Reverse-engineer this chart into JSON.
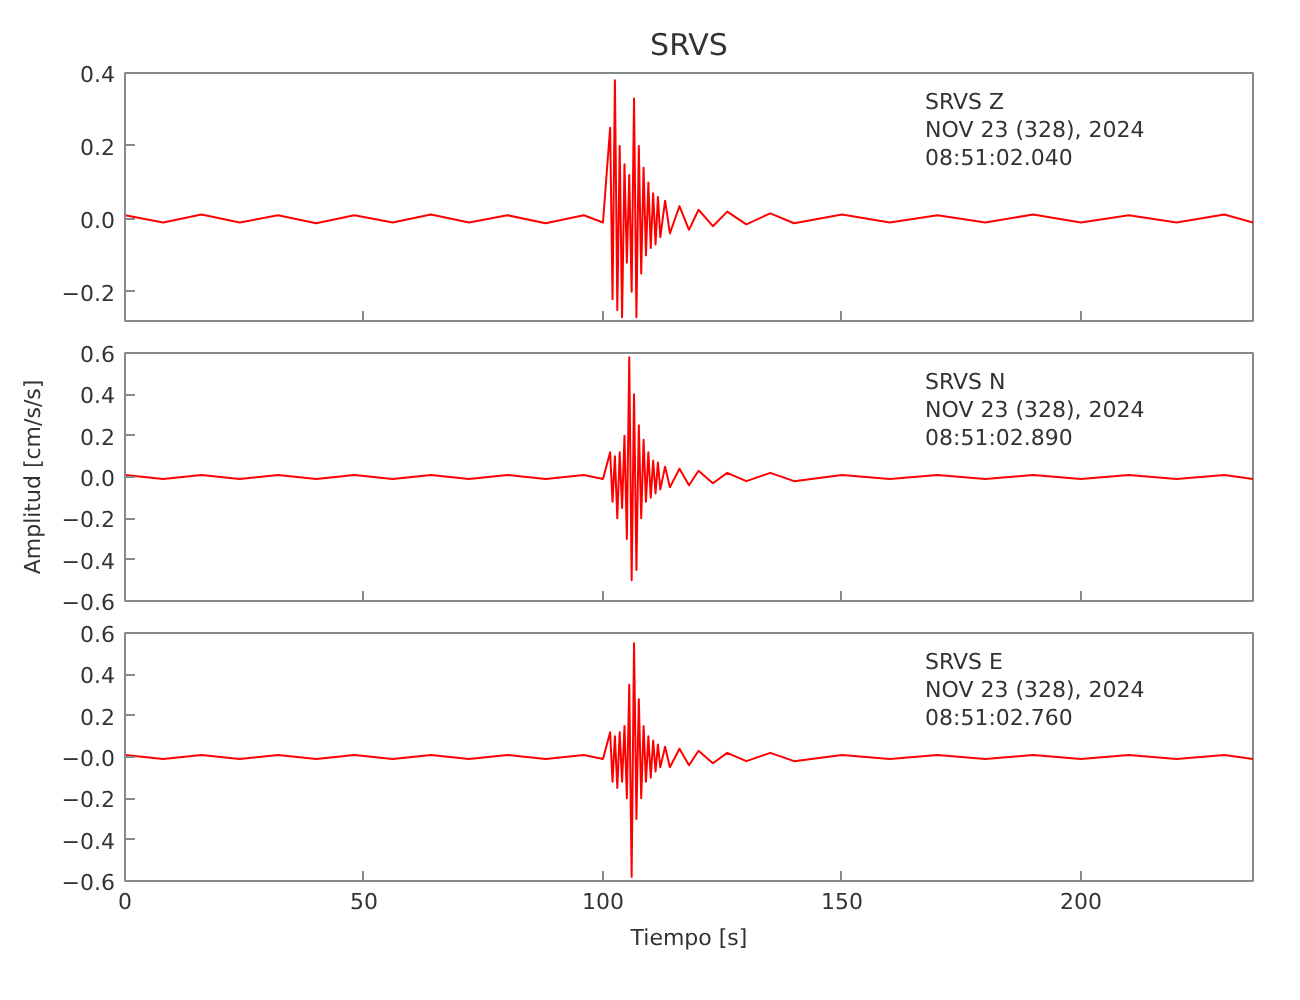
{
  "chart_data": [
    {
      "type": "line",
      "title": "SRVS",
      "annotations": [
        "SRVS   Z",
        "NOV 23 (328), 2024",
        "08:51:02.040"
      ],
      "tick_labels": "y",
      "xlim": [
        0,
        236
      ],
      "xticks": [
        0,
        50,
        100,
        150,
        200
      ],
      "ylim": [
        -0.28,
        0.4
      ],
      "yticks": [
        {
          "value": -0.2,
          "label": "−0.2"
        },
        {
          "value": 0.0,
          "label": "0.0"
        },
        0.2,
        0.4
      ],
      "x": [
        0,
        8,
        16,
        24,
        32,
        40,
        48,
        56,
        64,
        72,
        80,
        88,
        96,
        100,
        101.5,
        102,
        102.5,
        103,
        103.5,
        104,
        104.5,
        105,
        105.5,
        106,
        106.5,
        107,
        107.5,
        108,
        108.5,
        109,
        109.5,
        110,
        110.5,
        111,
        111.5,
        112,
        113,
        114,
        116,
        118,
        120,
        123,
        126,
        130,
        135,
        140,
        150,
        160,
        170,
        180,
        190,
        200,
        210,
        220,
        230,
        236
      ],
      "series": [
        {
          "color": "#ff0000",
          "values": [
            0.01,
            -0.01,
            0.012,
            -0.01,
            0.01,
            -0.012,
            0.01,
            -0.01,
            0.012,
            -0.01,
            0.01,
            -0.012,
            0.01,
            -0.01,
            0.25,
            -0.22,
            0.38,
            -0.25,
            0.2,
            -0.27,
            0.15,
            -0.12,
            0.12,
            -0.2,
            0.33,
            -0.27,
            0.2,
            -0.15,
            0.14,
            -0.1,
            0.1,
            -0.08,
            0.07,
            -0.07,
            0.06,
            -0.05,
            0.05,
            -0.04,
            0.035,
            -0.03,
            0.025,
            -0.02,
            0.02,
            -0.015,
            0.015,
            -0.012,
            0.012,
            -0.01,
            0.01,
            -0.01,
            0.012,
            -0.01,
            0.01,
            -0.01,
            0.012,
            -0.01
          ]
        }
      ]
    },
    {
      "type": "line",
      "ylabel": "Amplitud [cm/s/s]",
      "annotations": [
        "SRVS   N",
        "NOV 23 (328), 2024",
        "08:51:02.890"
      ],
      "tick_labels": "y",
      "xlim": [
        0,
        236
      ],
      "xticks": [
        0,
        50,
        100,
        150,
        200
      ],
      "ylim": [
        -0.6,
        0.6
      ],
      "yticks": [
        {
          "value": -0.6,
          "label": "−0.6"
        },
        {
          "value": -0.4,
          "label": "−0.4"
        },
        {
          "value": -0.2,
          "label": "−0.2"
        },
        {
          "value": 0.0,
          "label": "0.0"
        },
        0.2,
        0.4,
        0.6
      ],
      "x": [
        0,
        8,
        16,
        24,
        32,
        40,
        48,
        56,
        64,
        72,
        80,
        88,
        96,
        100,
        101.5,
        102,
        102.5,
        103,
        103.5,
        104,
        104.5,
        105,
        105.5,
        106,
        106.5,
        107,
        107.5,
        108,
        108.5,
        109,
        109.5,
        110,
        110.5,
        111,
        111.5,
        112,
        113,
        114,
        116,
        118,
        120,
        123,
        126,
        130,
        135,
        140,
        150,
        160,
        170,
        180,
        190,
        200,
        210,
        220,
        230,
        236
      ],
      "series": [
        {
          "color": "#ff0000",
          "values": [
            0.01,
            -0.01,
            0.01,
            -0.01,
            0.01,
            -0.01,
            0.01,
            -0.01,
            0.01,
            -0.01,
            0.01,
            -0.01,
            0.01,
            -0.01,
            0.12,
            -0.12,
            0.1,
            -0.2,
            0.12,
            -0.15,
            0.2,
            -0.3,
            0.58,
            -0.5,
            0.4,
            -0.45,
            0.25,
            -0.2,
            0.18,
            -0.12,
            0.12,
            -0.1,
            0.08,
            -0.08,
            0.07,
            -0.06,
            0.05,
            -0.05,
            0.04,
            -0.04,
            0.03,
            -0.03,
            0.02,
            -0.02,
            0.02,
            -0.02,
            0.01,
            -0.01,
            0.01,
            -0.01,
            0.01,
            -0.01,
            0.01,
            -0.01,
            0.01,
            -0.01
          ]
        }
      ]
    },
    {
      "type": "line",
      "xlabel": "Tiempo [s]",
      "annotations": [
        "SRVS   E",
        "NOV 23 (328), 2024",
        "08:51:02.760"
      ],
      "xlim": [
        0,
        236
      ],
      "xticks": [
        0,
        50,
        100,
        150,
        200
      ],
      "ylim": [
        -0.6,
        0.6
      ],
      "yticks": [
        {
          "value": -0.6,
          "label": "−0.6"
        },
        {
          "value": -0.4,
          "label": "−0.4"
        },
        {
          "value": -0.2,
          "label": "−0.2"
        },
        {
          "value": 0.0,
          "label": "−0.0"
        },
        0.2,
        0.4,
        0.6
      ],
      "x": [
        0,
        8,
        16,
        24,
        32,
        40,
        48,
        56,
        64,
        72,
        80,
        88,
        96,
        100,
        101.5,
        102,
        102.5,
        103,
        103.5,
        104,
        104.5,
        105,
        105.5,
        106,
        106.5,
        107,
        107.5,
        108,
        108.5,
        109,
        109.5,
        110,
        110.5,
        111,
        111.5,
        112,
        113,
        114,
        116,
        118,
        120,
        123,
        126,
        130,
        135,
        140,
        150,
        160,
        170,
        180,
        190,
        200,
        210,
        220,
        230,
        236
      ],
      "series": [
        {
          "color": "#ff0000",
          "values": [
            0.01,
            -0.01,
            0.01,
            -0.01,
            0.01,
            -0.01,
            0.01,
            -0.01,
            0.01,
            -0.01,
            0.01,
            -0.01,
            0.01,
            -0.01,
            0.12,
            -0.12,
            0.1,
            -0.15,
            0.12,
            -0.12,
            0.15,
            -0.2,
            0.35,
            -0.58,
            0.55,
            -0.3,
            0.28,
            -0.2,
            0.15,
            -0.12,
            0.1,
            -0.1,
            0.08,
            -0.07,
            0.06,
            -0.05,
            0.05,
            -0.05,
            0.04,
            -0.04,
            0.03,
            -0.03,
            0.02,
            -0.02,
            0.02,
            -0.02,
            0.01,
            -0.01,
            0.01,
            -0.01,
            0.01,
            -0.01,
            0.01,
            -0.01,
            0.01,
            -0.01
          ]
        }
      ]
    }
  ]
}
